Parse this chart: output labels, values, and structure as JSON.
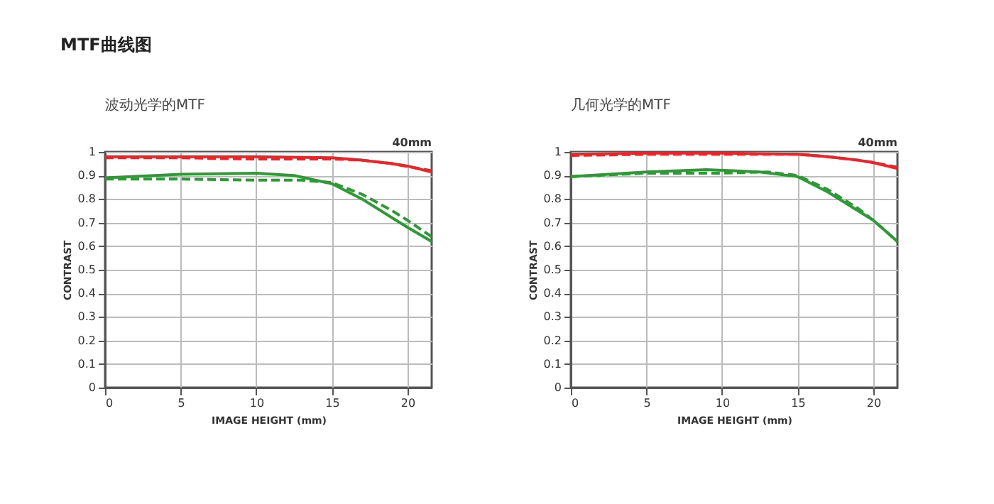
{
  "chart_data": [
    {
      "type": "line",
      "title": "波动光学的MTF",
      "subtitle": "40mm",
      "annotations": [
        "MTF曲线图"
      ],
      "xlabel": "IMAGE HEIGHT (mm)",
      "ylabel": "CONTRAST",
      "xlim": [
        0,
        21.6
      ],
      "ylim": [
        0,
        1
      ],
      "xticks": [
        0,
        5,
        10,
        15,
        20
      ],
      "yticks": [
        0,
        0.1,
        0.2,
        0.3,
        0.4,
        0.5,
        0.6,
        0.7,
        0.8,
        0.9,
        1
      ],
      "grid": true,
      "legend": false,
      "marker": "none",
      "series": [
        {
          "color": "#e8262a",
          "line_style": "solid",
          "x": [
            0,
            5,
            10,
            15,
            17,
            19,
            20,
            21.6
          ],
          "values": [
            0.98,
            0.98,
            0.98,
            0.975,
            0.965,
            0.95,
            0.94,
            0.915
          ]
        },
        {
          "color": "#e8262a",
          "line_style": "dashed",
          "x": [
            0,
            5,
            10,
            15,
            17,
            19,
            21.6
          ],
          "values": [
            0.975,
            0.975,
            0.97,
            0.97,
            0.965,
            0.95,
            0.92
          ]
        },
        {
          "color": "#2e9a36",
          "line_style": "solid",
          "x": [
            0,
            5,
            10,
            12.5,
            15,
            17,
            19,
            20,
            21.6
          ],
          "values": [
            0.89,
            0.905,
            0.91,
            0.9,
            0.865,
            0.8,
            0.72,
            0.68,
            0.62
          ]
        },
        {
          "color": "#2e9a36",
          "line_style": "dashed",
          "x": [
            0,
            5,
            10,
            13,
            15,
            17,
            19,
            20,
            21.6
          ],
          "values": [
            0.885,
            0.885,
            0.88,
            0.88,
            0.87,
            0.82,
            0.75,
            0.71,
            0.64
          ]
        }
      ]
    },
    {
      "type": "line",
      "title": "几何光学的MTF",
      "subtitle": "40mm",
      "xlabel": "IMAGE HEIGHT (mm)",
      "ylabel": "CONTRAST",
      "xlim": [
        0,
        21.6
      ],
      "ylim": [
        0,
        1
      ],
      "xticks": [
        0,
        5,
        10,
        15,
        20
      ],
      "yticks": [
        0,
        0.1,
        0.2,
        0.3,
        0.4,
        0.5,
        0.6,
        0.7,
        0.8,
        0.9,
        1
      ],
      "grid": true,
      "legend": false,
      "marker": "none",
      "series": [
        {
          "color": "#e8262a",
          "line_style": "solid",
          "x": [
            0,
            5,
            10,
            15,
            17,
            19,
            20,
            21.6
          ],
          "values": [
            0.99,
            0.995,
            0.995,
            0.99,
            0.98,
            0.965,
            0.955,
            0.93
          ]
        },
        {
          "color": "#e8262a",
          "line_style": "dashed",
          "x": [
            0,
            5,
            10,
            15,
            17,
            19,
            20,
            21.6
          ],
          "values": [
            0.985,
            0.99,
            0.99,
            0.99,
            0.98,
            0.965,
            0.955,
            0.935
          ]
        },
        {
          "color": "#2e9a36",
          "line_style": "solid",
          "x": [
            0,
            5,
            9,
            12.5,
            15,
            17,
            19,
            20,
            21.6
          ],
          "values": [
            0.895,
            0.915,
            0.925,
            0.915,
            0.895,
            0.83,
            0.75,
            0.71,
            0.62
          ]
        },
        {
          "color": "#2e9a36",
          "line_style": "dashed",
          "x": [
            0,
            5,
            10,
            13,
            15,
            17,
            19,
            20,
            21.6
          ],
          "values": [
            0.895,
            0.91,
            0.91,
            0.915,
            0.9,
            0.84,
            0.76,
            0.71,
            0.62
          ]
        }
      ]
    }
  ]
}
